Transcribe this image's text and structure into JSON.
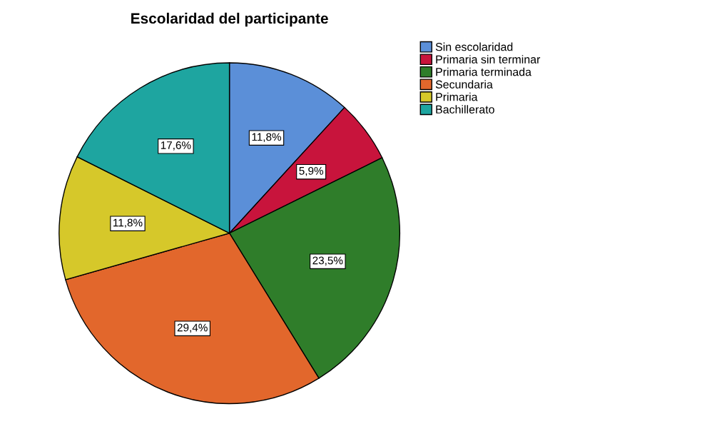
{
  "chart_data": {
    "type": "pie",
    "title": "Escolaridad del participante",
    "categories": [
      "Sin escolaridad",
      "Primaria sin terminar",
      "Primaria terminada",
      "Secundaria",
      "Primaria",
      "Bachillerato"
    ],
    "values": [
      11.8,
      5.9,
      23.5,
      29.4,
      11.8,
      17.6
    ],
    "value_labels": [
      "11,8%",
      "5,9%",
      "23,5%",
      "29,4%",
      "11,8%",
      "17,6%"
    ],
    "colors": [
      "#5b8fd8",
      "#c8143c",
      "#2f7d2a",
      "#e2672c",
      "#d6c82a",
      "#1ea5a0"
    ],
    "legend": "top right"
  }
}
